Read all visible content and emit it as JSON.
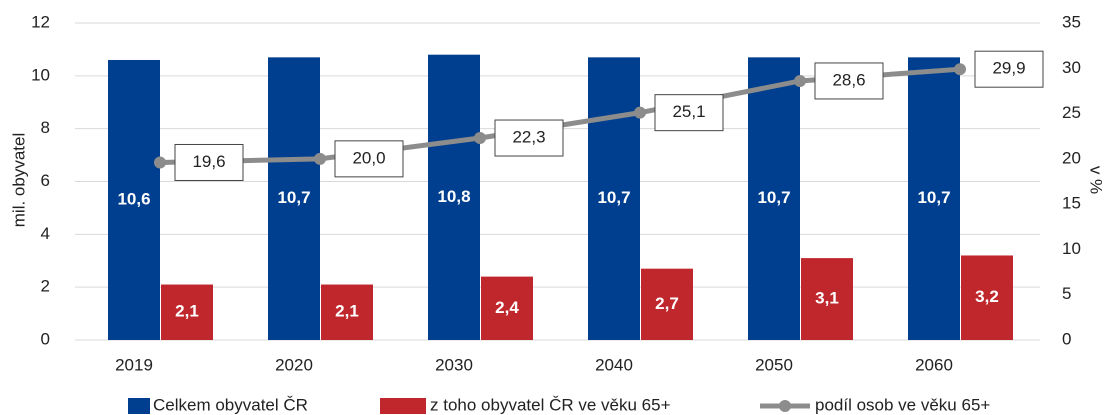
{
  "chart_data": {
    "type": "bar-line",
    "categories": [
      "2019",
      "2020",
      "2030",
      "2040",
      "2050",
      "2060"
    ],
    "series": [
      {
        "name": "Celkem obyvatel ČR",
        "type": "bar",
        "color": "#003f8f",
        "values": [
          10.6,
          10.7,
          10.8,
          10.7,
          10.7,
          10.7
        ],
        "value_labels": [
          "10,6",
          "10,7",
          "10,8",
          "10,7",
          "10,7",
          "10,7"
        ]
      },
      {
        "name": "z toho obyvatel ČR ve věku 65+",
        "type": "bar",
        "color": "#c0272d",
        "values": [
          2.1,
          2.1,
          2.4,
          2.7,
          3.1,
          3.2
        ],
        "value_labels": [
          "2,1",
          "2,1",
          "2,4",
          "2,7",
          "3,1",
          "3,2"
        ]
      },
      {
        "name": "podíl osob ve věku 65+",
        "type": "line",
        "axis": "y2",
        "color": "#8c8c8c",
        "values": [
          19.6,
          20.0,
          22.3,
          25.1,
          28.6,
          29.9
        ],
        "value_labels": [
          "19,6",
          "20,0",
          "22,3",
          "25,1",
          "28,6",
          "29,9"
        ]
      }
    ],
    "ylabel": "mil. obyvatel",
    "y2label": "v %",
    "ylim": [
      0,
      12
    ],
    "yticks": [
      0,
      2,
      4,
      6,
      8,
      10,
      12
    ],
    "y2lim": [
      0,
      35
    ],
    "y2ticks": [
      0,
      5,
      10,
      15,
      20,
      25,
      30,
      35
    ],
    "grid": true,
    "legend": "bottom"
  }
}
